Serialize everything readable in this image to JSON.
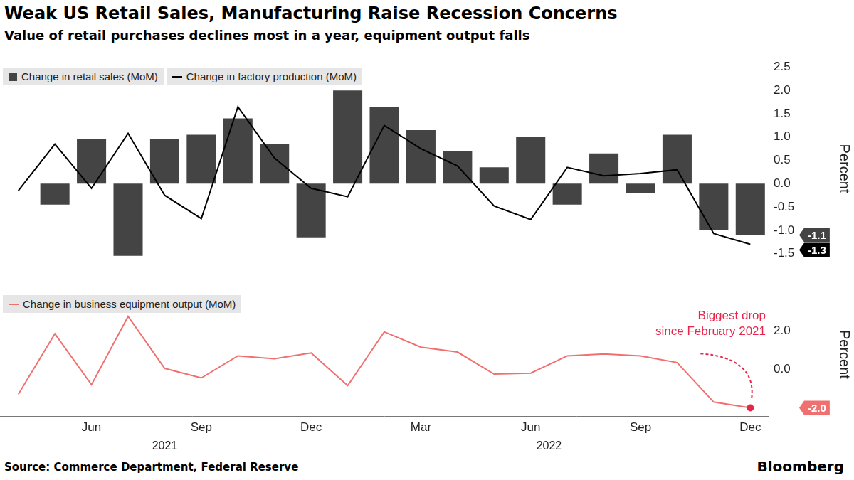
{
  "title": "Weak US Retail Sales, Manufacturing Raise Recession Concerns",
  "subtitle": "Value of retail purchases declines most in a year, equipment output falls",
  "source": "Source: Commerce Department, Federal Reserve",
  "brand": "Bloomberg",
  "chart_data": [
    {
      "type": "bar",
      "categories": [
        null,
        null,
        "Jun",
        null,
        null,
        "Sep",
        null,
        null,
        "Dec",
        null,
        null,
        "Mar",
        null,
        null,
        "Jun",
        null,
        null,
        "Sep",
        null,
        null,
        "Dec"
      ],
      "series": [
        {
          "name": "Change in retail sales (MoM)",
          "type": "bar",
          "color": "#444444",
          "values": [
            null,
            -0.45,
            0.95,
            -1.55,
            0.95,
            1.05,
            1.4,
            0.85,
            -1.15,
            2.0,
            1.65,
            1.15,
            0.7,
            0.35,
            1.0,
            -0.45,
            0.65,
            -0.2,
            1.05,
            -1.0,
            -1.1
          ],
          "value_labels": [
            null,
            null,
            null,
            null,
            null,
            null,
            null,
            null,
            null,
            null,
            null,
            null,
            null,
            null,
            null,
            null,
            null,
            null,
            null,
            null,
            "-1.1"
          ]
        },
        {
          "name": "Change in factory production (MoM)",
          "type": "line",
          "color": "#000000",
          "values": [
            -0.15,
            0.85,
            -0.1,
            1.08,
            -0.25,
            -0.75,
            1.65,
            0.55,
            -0.1,
            -0.28,
            1.25,
            0.75,
            0.38,
            -0.48,
            -0.77,
            0.35,
            0.17,
            0.22,
            0.3,
            -1.07,
            -1.3
          ],
          "value_labels": [
            null,
            null,
            null,
            null,
            null,
            null,
            null,
            null,
            null,
            null,
            null,
            null,
            null,
            null,
            null,
            null,
            null,
            null,
            null,
            null,
            "-1.3"
          ]
        }
      ],
      "y_label": "Percent",
      "ylim": [
        -1.9,
        2.55
      ],
      "yticks": [
        {
          "value": -1.5,
          "label": "-1.5"
        },
        {
          "value": -1,
          "label": "-1.0"
        },
        {
          "value": -0.5,
          "label": "-0.5"
        },
        {
          "value": 0,
          "label": "0.0"
        },
        {
          "value": 0.5,
          "label": "0.5"
        },
        {
          "value": 1,
          "label": "1.0"
        },
        {
          "value": 1.5,
          "label": "1.5"
        },
        {
          "value": 2,
          "label": "2.0"
        },
        {
          "value": 2.5,
          "label": "2.5"
        }
      ],
      "grid": false,
      "legend": "top-left",
      "tick_labels": "y"
    },
    {
      "type": "line",
      "categories": [
        null,
        null,
        "Jun",
        null,
        null,
        "Sep",
        null,
        null,
        "Dec",
        null,
        null,
        "Mar",
        null,
        null,
        "Jun",
        null,
        null,
        "Sep",
        null,
        null,
        "Dec"
      ],
      "x_groups": [
        {
          "label": "2021",
          "from": 0,
          "to": 8
        },
        {
          "label": "2022",
          "from": 9,
          "to": 20
        }
      ],
      "series": [
        {
          "name": "Change in business equipment output (MoM)",
          "type": "line",
          "color": "#f07070",
          "values": [
            -1.3,
            1.85,
            -0.8,
            2.75,
            0.05,
            -0.45,
            0.7,
            0.55,
            0.85,
            -0.85,
            1.95,
            1.15,
            0.9,
            -0.25,
            -0.2,
            0.7,
            0.8,
            0.7,
            0.35,
            -1.7,
            -2.0
          ],
          "value_labels": [
            null,
            null,
            null,
            null,
            null,
            null,
            null,
            null,
            null,
            null,
            null,
            null,
            null,
            null,
            null,
            null,
            null,
            null,
            null,
            null,
            "-2.0"
          ]
        }
      ],
      "annotation": {
        "text": [
          "Biggest drop",
          "since February 2021"
        ],
        "index": 20,
        "color": "#e8254a"
      },
      "y_label": "Percent",
      "ylim": [
        -2.45,
        4.0
      ],
      "yticks": [
        {
          "value": 0,
          "label": "0.0"
        },
        {
          "value": 2,
          "label": "2.0"
        }
      ],
      "grid": false,
      "legend": "top-left"
    }
  ]
}
